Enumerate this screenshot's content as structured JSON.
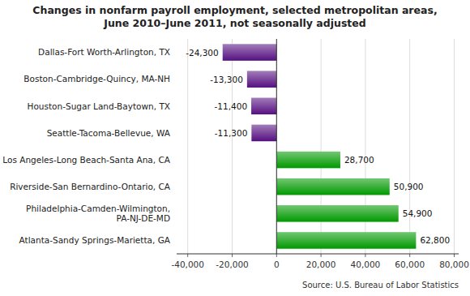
{
  "chart_data": {
    "type": "bar",
    "orientation": "horizontal",
    "title": "Changes in nonfarm payroll employment, selected metropolitan areas,",
    "subtitle": "June 2010–June 2011, not seasonally adjusted",
    "categories": [
      "Dallas-Fort Worth-Arlington, TX",
      "Boston-Cambridge-Quincy, MA-NH",
      "Houston-Sugar Land-Baytown, TX",
      "Seattle-Tacoma-Bellevue, WA",
      "Los Angeles-Long Beach-Santa Ana, CA",
      "Riverside-San Bernardino-Ontario, CA",
      "Philadelphia-Camden-Wilmington,\nPA-NJ-DE-MD",
      "Atlanta-Sandy Springs-Marietta, GA"
    ],
    "values": [
      -24300,
      -13300,
      -11400,
      -11300,
      28700,
      50900,
      54900,
      62800
    ],
    "value_labels": [
      "-24,300",
      "-13,300",
      "-11,400",
      "-11,300",
      "28,700",
      "50,900",
      "54,900",
      "62,800"
    ],
    "colors": [
      "#551080",
      "#551080",
      "#551080",
      "#551080",
      "#009900",
      "#009900",
      "#009900",
      "#009900"
    ],
    "xlim": [
      -45000,
      82000
    ],
    "xticks": [
      {
        "value": -40000,
        "label": "-40,000"
      },
      {
        "value": -20000,
        "label": "-20,000"
      },
      0,
      {
        "value": 20000,
        "label": "20,000"
      },
      {
        "value": 40000,
        "label": "40,000"
      },
      {
        "value": 60000,
        "label": "60,000"
      },
      {
        "value": 80000,
        "label": "80,000"
      }
    ],
    "annotations": [
      "Source: U.S. Bureau of Labor Statistics"
    ],
    "grid": true,
    "data_labels": true
  }
}
